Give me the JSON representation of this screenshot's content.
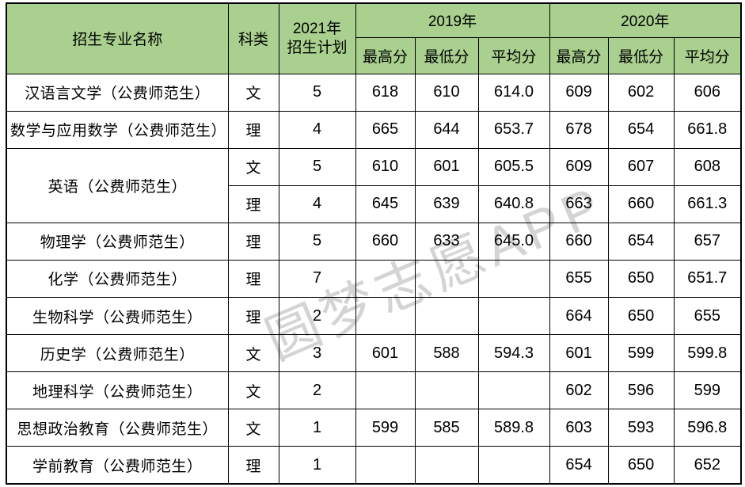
{
  "watermark": "圆梦志愿APP",
  "colors": {
    "header_bg": "#a9d08e",
    "border": "#000000",
    "watermark": "#d4d4d4"
  },
  "chart_data": {
    "type": "table",
    "header": {
      "major": "招生专业名称",
      "category": "科类",
      "plan": "2021年\n招生计划",
      "y2019": "2019年",
      "y2020": "2020年",
      "sub": [
        "最高分",
        "最低分",
        "平均分"
      ]
    },
    "rows": [
      {
        "major": "汉语言文学（公费师范生）",
        "major_rowspan": 1,
        "category": "文",
        "plan": "5",
        "scores": [
          "618",
          "610",
          "614.0",
          "609",
          "602",
          "606"
        ]
      },
      {
        "major": "数学与应用数学（公费师范生）",
        "major_rowspan": 1,
        "category": "理",
        "plan": "4",
        "scores": [
          "665",
          "644",
          "653.7",
          "678",
          "654",
          "661.8"
        ]
      },
      {
        "major": "英语（公费师范生）",
        "major_rowspan": 2,
        "category": "文",
        "plan": "5",
        "scores": [
          "610",
          "601",
          "605.5",
          "609",
          "607",
          "608"
        ]
      },
      {
        "major": "",
        "major_rowspan": 0,
        "category": "理",
        "plan": "4",
        "scores": [
          "645",
          "639",
          "640.8",
          "663",
          "660",
          "661.3"
        ]
      },
      {
        "major": "物理学（公费师范生）",
        "major_rowspan": 1,
        "category": "理",
        "plan": "5",
        "scores": [
          "660",
          "633",
          "645.0",
          "660",
          "654",
          "657"
        ]
      },
      {
        "major": "化学（公费师范生）",
        "major_rowspan": 1,
        "category": "理",
        "plan": "7",
        "scores": [
          "",
          "",
          "",
          "655",
          "650",
          "651.7"
        ]
      },
      {
        "major": "生物科学（公费师范生）",
        "major_rowspan": 1,
        "category": "理",
        "plan": "2",
        "scores": [
          "",
          "",
          "",
          "664",
          "650",
          "655"
        ]
      },
      {
        "major": "历史学（公费师范生）",
        "major_rowspan": 1,
        "category": "文",
        "plan": "3",
        "scores": [
          "601",
          "588",
          "594.3",
          "601",
          "599",
          "599.8"
        ]
      },
      {
        "major": "地理科学（公费师范生）",
        "major_rowspan": 1,
        "category": "文",
        "plan": "2",
        "scores": [
          "",
          "",
          "",
          "602",
          "596",
          "599"
        ]
      },
      {
        "major": "思想政治教育（公费师范生）",
        "major_rowspan": 1,
        "category": "文",
        "plan": "1",
        "scores": [
          "599",
          "585",
          "589.8",
          "603",
          "593",
          "596.8"
        ]
      },
      {
        "major": "学前教育（公费师范生）",
        "major_rowspan": 1,
        "category": "理",
        "plan": "1",
        "scores": [
          "",
          "",
          "",
          "654",
          "650",
          "652"
        ]
      }
    ]
  }
}
